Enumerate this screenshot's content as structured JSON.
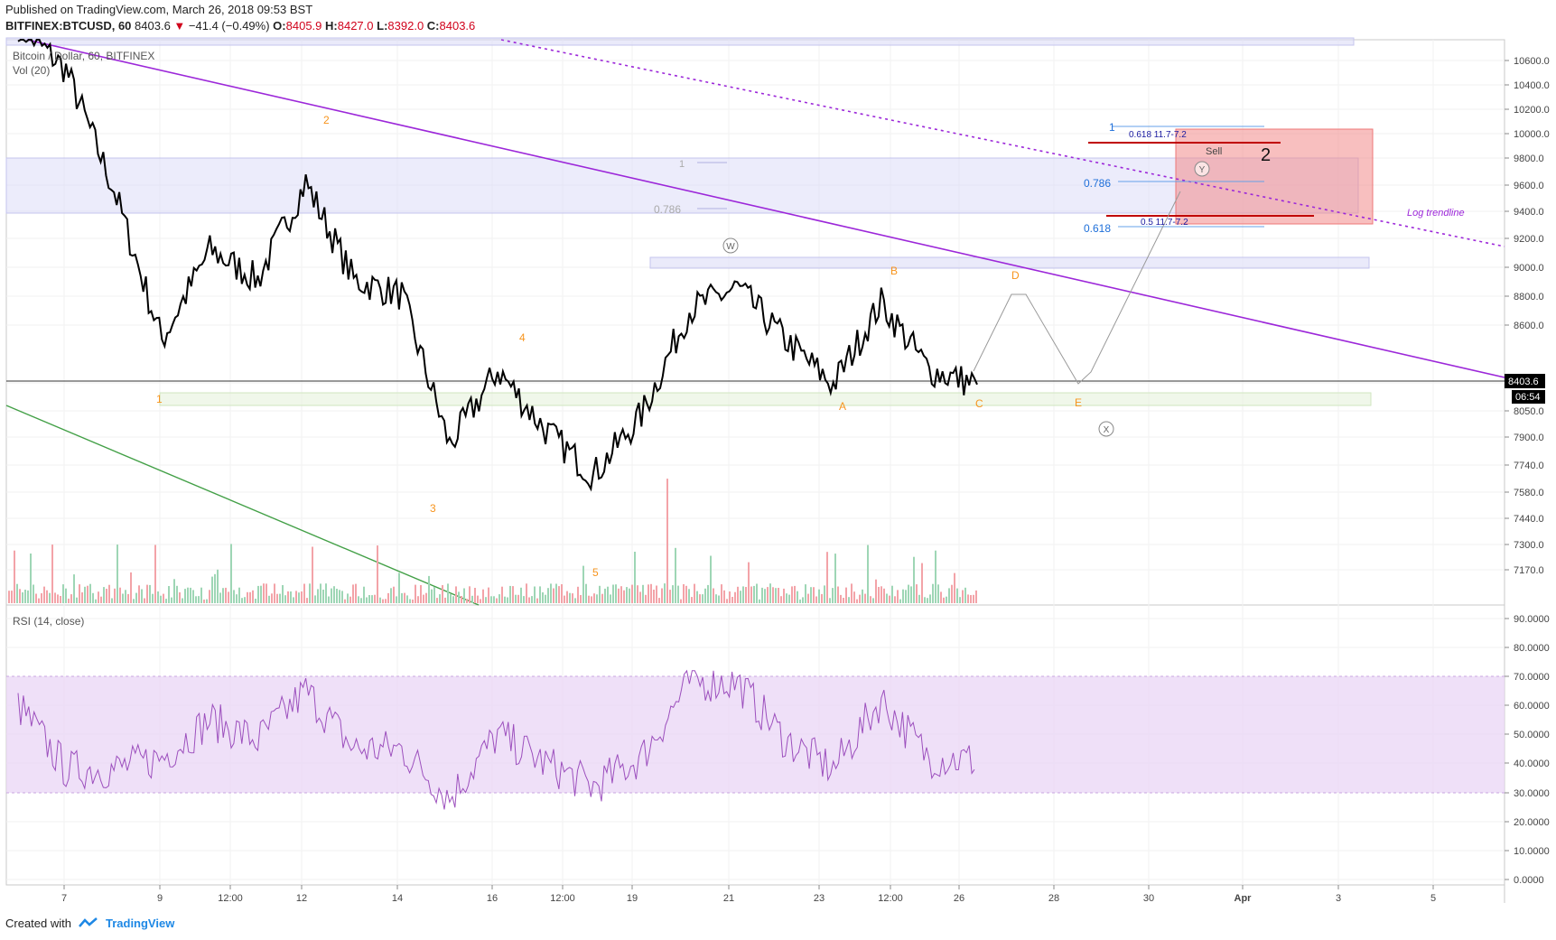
{
  "header": {
    "published": "Published on TradingView.com, March 26, 2018 09:53 BST",
    "symbol": "BITFINEX:BTCUSD, 60",
    "last": "8403.6",
    "change": "−41.4 (−0.49%)",
    "o_label": "O:",
    "o": "8405.9",
    "h_label": "H:",
    "h": "8427.0",
    "l_label": "L:",
    "l": "8392.0",
    "c_label": "C:",
    "c": "8403.6"
  },
  "pane_labels": {
    "title": "Bitcoin / Dollar, 60, BITFINEX",
    "vol": "Vol (20)",
    "rsi": "RSI (14, close)"
  },
  "price_axis": {
    "ticks": [
      "10600.0",
      "10400.0",
      "10200.0",
      "10000.0",
      "9800.0",
      "9600.0",
      "9400.0",
      "9200.0",
      "9000.0",
      "8800.0",
      "8600.0",
      "8200.0",
      "8050.0",
      "7900.0",
      "7740.0",
      "7580.0",
      "7440.0",
      "7300.0",
      "7170.0"
    ],
    "current_price": "8403.6",
    "countdown": "06:54"
  },
  "rsi_axis": {
    "ticks": [
      "90.0000",
      "80.0000",
      "70.0000",
      "60.0000",
      "50.0000",
      "40.0000",
      "30.0000",
      "20.0000",
      "10.0000",
      "0.0000"
    ]
  },
  "time_axis": {
    "ticks": [
      "7",
      "9",
      "12:00",
      "12",
      "14",
      "16",
      "12:00",
      "19",
      "21",
      "23",
      "12:00",
      "26",
      "28",
      "30",
      "Apr",
      "3",
      "5"
    ]
  },
  "annotations": {
    "waves": [
      "1",
      "2",
      "3",
      "4",
      "5",
      "A",
      "B",
      "C",
      "D",
      "E"
    ],
    "circled": [
      "W",
      "Y",
      "X"
    ],
    "fib_left_1": "1",
    "fib_left_786": "0.786",
    "fib_1": "1",
    "fib_0618_a": "0.618 11.7-7.2",
    "fib_0786": "0.786",
    "fib_0618": "0.618",
    "fib_05": "0.5 11.7-7.2",
    "sell": "Sell",
    "big_2": "2",
    "log_trendline": "Log trendline"
  },
  "colors": {
    "price_line": "#000000",
    "trendline": "#9c27d9",
    "green_line": "#43a047",
    "wave_label": "#f7941d",
    "sell_box": "#f28b8b",
    "zone_blue": "#dcdcf7",
    "rsi_band": "#e9d5f5",
    "rsi_line": "#9c4fbd",
    "vol_up": "#9ed6b5",
    "vol_down": "#f3a3a8"
  },
  "chart_data": {
    "type": "line",
    "title": "Bitcoin / Dollar, 60, BITFINEX",
    "x_range": [
      "Mar 6",
      "Apr 5"
    ],
    "ylim": [
      7170,
      10700
    ],
    "x": [
      "Mar 6",
      "Mar 7",
      "Mar 8",
      "Mar 9",
      "Mar 10",
      "Mar 11",
      "Mar 12",
      "Mar 13",
      "Mar 14",
      "Mar 15",
      "Mar 16",
      "Mar 17",
      "Mar 18",
      "Mar 19",
      "Mar 20",
      "Mar 21",
      "Mar 22",
      "Mar 23",
      "Mar 24",
      "Mar 25",
      "Mar 26"
    ],
    "series": [
      {
        "values": [
          10800,
          10500,
          9700,
          8700,
          9300,
          9100,
          9750,
          9100,
          9000,
          8000,
          8500,
          8100,
          7800,
          8200,
          8900,
          9050,
          8700,
          8400,
          8950,
          8500,
          8404
        ]
      }
    ],
    "rsi": {
      "ylim": [
        0,
        90
      ],
      "band": [
        30,
        70
      ],
      "values": [
        60,
        38,
        38,
        42,
        55,
        48,
        65,
        45,
        45,
        28,
        50,
        40,
        32,
        42,
        68,
        68,
        48,
        38,
        62,
        42,
        41
      ]
    }
  }
}
